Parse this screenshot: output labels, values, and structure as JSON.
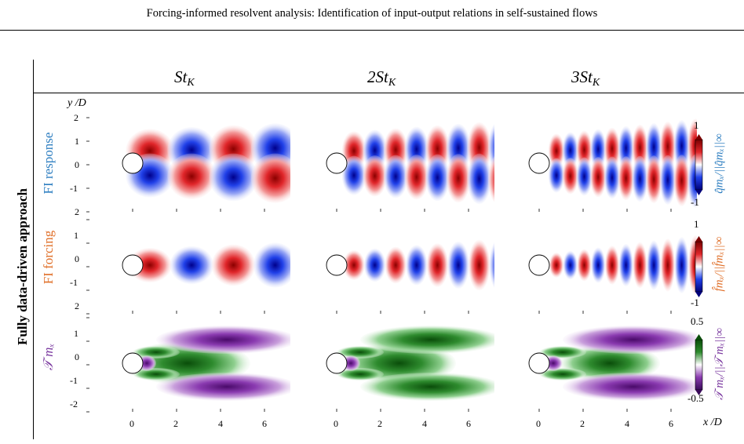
{
  "header": {
    "title": "Forcing-informed resolvent analysis: Identification of input-output relations in self-sustained flows"
  },
  "side_label": "Fully data-driven approach",
  "columns": [
    {
      "prefix": "",
      "base": "St",
      "sub": "K"
    },
    {
      "prefix": "2",
      "base": "St",
      "sub": "K"
    },
    {
      "prefix": "3",
      "base": "St",
      "sub": "K"
    }
  ],
  "rows": [
    {
      "label": "FI response",
      "color": "#2f7fc1",
      "colorbar": {
        "max": "1",
        "min": "-1",
        "title": "q̂mₓ/||q̂mₓ||∞",
        "title_color": "#2f7fc1"
      }
    },
    {
      "label": "FI forcing",
      "color": "#e0702a",
      "colorbar": {
        "max": "1",
        "min": "-1",
        "title": "f̂mₓ/||f̂mₓ||∞",
        "title_color": "#e0702a"
      }
    },
    {
      "label": "𝒯 mₓ",
      "color": "#7b3aa0",
      "colorbar": {
        "max": "0.5",
        "min": "-0.5",
        "title": "𝒯 mₓ/||𝒯 mₓ||∞",
        "title_color": "#7b3aa0"
      }
    }
  ],
  "axes": {
    "ylabel": "y /D",
    "xlabel": "x /D",
    "xticks": [
      "0",
      "2",
      "4",
      "6"
    ],
    "yticks": [
      "2",
      "1",
      "0",
      "-1",
      "2"
    ],
    "yticks_bottom": [
      "2",
      "1",
      "0",
      "-1",
      "-2"
    ]
  },
  "colors": {
    "red": "#d7191c",
    "blue": "#1a3fe0",
    "green": "#1a7a1a",
    "purple": "#6a1b8a"
  }
}
